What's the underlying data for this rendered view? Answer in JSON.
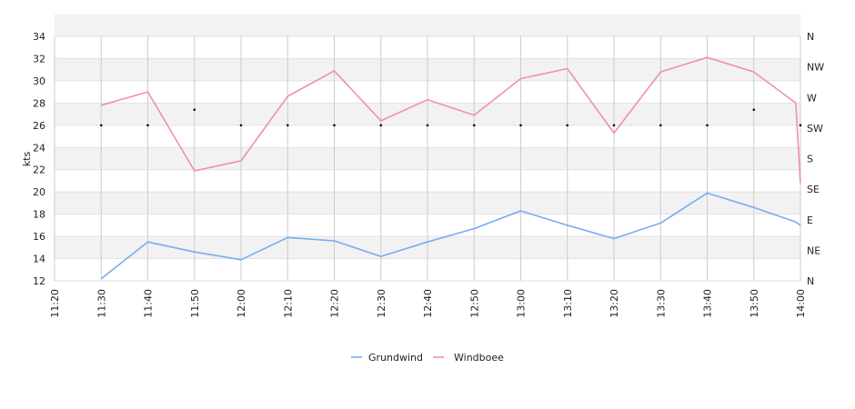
{
  "chart_data": {
    "type": "line",
    "title": "",
    "xlabel": "",
    "ylabel": "kts",
    "ylim": [
      12,
      34
    ],
    "y_ticks": [
      "12",
      "14",
      "16",
      "18",
      "20",
      "22",
      "24",
      "26",
      "28",
      "30",
      "32",
      "34"
    ],
    "x_ticks": [
      "11:20",
      "11:30",
      "11:40",
      "11:50",
      "12:00",
      "12:10",
      "12:20",
      "12:30",
      "12:40",
      "12:50",
      "13:00",
      "13:10",
      "13:20",
      "13:30",
      "13:40",
      "13:50",
      "14:00"
    ],
    "y2_ticks": [
      "N",
      "NE",
      "E",
      "SE",
      "S",
      "SW",
      "W",
      "NW",
      "N"
    ],
    "x": [
      "11:30",
      "11:40",
      "11:50",
      "12:00",
      "12:10",
      "12:20",
      "12:30",
      "12:40",
      "12:50",
      "13:00",
      "13:10",
      "13:20",
      "13:30",
      "13:40",
      "13:50",
      "13:59",
      "14:00"
    ],
    "series": [
      {
        "name": "Grundwind",
        "color": "#74aef0",
        "values": [
          12.2,
          15.5,
          14.6,
          13.9,
          15.9,
          15.6,
          14.2,
          15.5,
          16.7,
          18.3,
          17.0,
          15.8,
          17.2,
          19.9,
          18.6,
          17.3,
          17.0
        ]
      },
      {
        "name": "Windboee",
        "color": "#f08cbc",
        "values": [
          27.8,
          29.0,
          21.9,
          22.8,
          28.6,
          30.9,
          26.4,
          28.3,
          26.9,
          30.2,
          31.1,
          25.3,
          30.8,
          32.1,
          30.8,
          28.0,
          20.8
        ]
      }
    ],
    "direction_markers": {
      "x": [
        "11:30",
        "11:40",
        "11:50",
        "12:00",
        "12:10",
        "12:20",
        "12:30",
        "12:40",
        "12:50",
        "13:00",
        "13:10",
        "13:20",
        "13:30",
        "13:40",
        "13:50",
        "14:00"
      ],
      "values": [
        26.0,
        26.0,
        27.4,
        26.0,
        26.0,
        26.0,
        26.0,
        26.0,
        26.0,
        26.0,
        26.0,
        26.0,
        26.0,
        26.0,
        27.4,
        26.0
      ]
    },
    "grid": true,
    "legend_position": "bottom-center",
    "band_color": "#f2f2f2",
    "grid_color": "#cccccc"
  }
}
